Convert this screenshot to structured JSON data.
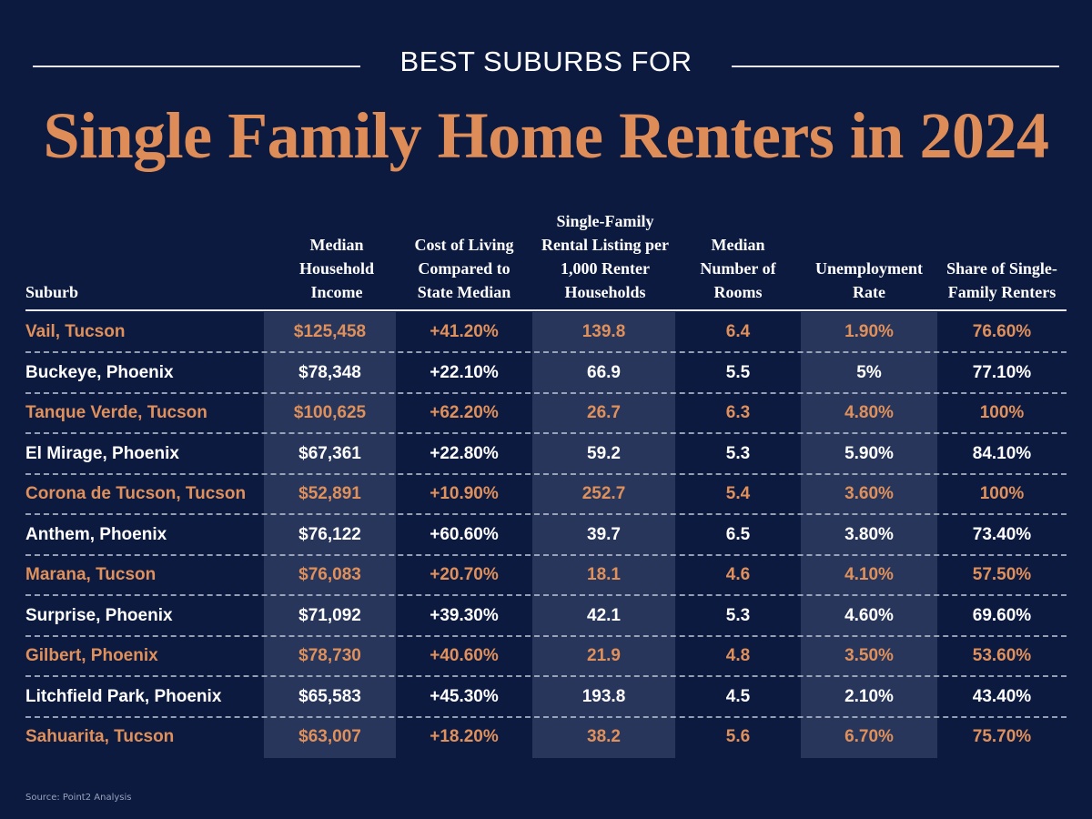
{
  "kicker": "BEST SUBURBS FOR",
  "title": "Single Family Home Renters in 2024",
  "source": "Source: Point2 Analysis",
  "colors": {
    "background": "#0c1a40",
    "accent": "#de8c58",
    "shaded_column": "#27365a",
    "text": "#ffffff"
  },
  "chart_data": {
    "type": "table",
    "columns": [
      "Suburb",
      "Median Household Income",
      "Cost of Living Compared to State Median",
      "Single-Family Rental Listing per 1,000 Renter Households",
      "Median Number of Rooms",
      "Unemployment Rate",
      "Share of Single-Family Renters"
    ],
    "rows": [
      [
        "Vail, Tucson",
        "$125,458",
        "+41.20%",
        "139.8",
        "6.4",
        "1.90%",
        "76.60%"
      ],
      [
        "Buckeye, Phoenix",
        "$78,348",
        "+22.10%",
        "66.9",
        "5.5",
        "5%",
        "77.10%"
      ],
      [
        "Tanque Verde, Tucson",
        "$100,625",
        "+62.20%",
        "26.7",
        "6.3",
        "4.80%",
        "100%"
      ],
      [
        "El Mirage, Phoenix",
        "$67,361",
        "+22.80%",
        "59.2",
        "5.3",
        "5.90%",
        "84.10%"
      ],
      [
        "Corona de Tucson, Tucson",
        "$52,891",
        "+10.90%",
        "252.7",
        "5.4",
        "3.60%",
        "100%"
      ],
      [
        "Anthem, Phoenix",
        "$76,122",
        "+60.60%",
        "39.7",
        "6.5",
        "3.80%",
        "73.40%"
      ],
      [
        "Marana, Tucson",
        "$76,083",
        "+20.70%",
        "18.1",
        "4.6",
        "4.10%",
        "57.50%"
      ],
      [
        "Surprise, Phoenix",
        "$71,092",
        "+39.30%",
        "42.1",
        "5.3",
        "4.60%",
        "69.60%"
      ],
      [
        "Gilbert, Phoenix",
        "$78,730",
        "+40.60%",
        "21.9",
        "4.8",
        "3.50%",
        "53.60%"
      ],
      [
        "Litchfield Park, Phoenix",
        "$65,583",
        "+45.30%",
        "193.8",
        "4.5",
        "2.10%",
        "43.40%"
      ],
      [
        "Sahuarita, Tucson",
        "$63,007",
        "+18.20%",
        "38.2",
        "5.6",
        "6.70%",
        "75.70%"
      ]
    ]
  }
}
